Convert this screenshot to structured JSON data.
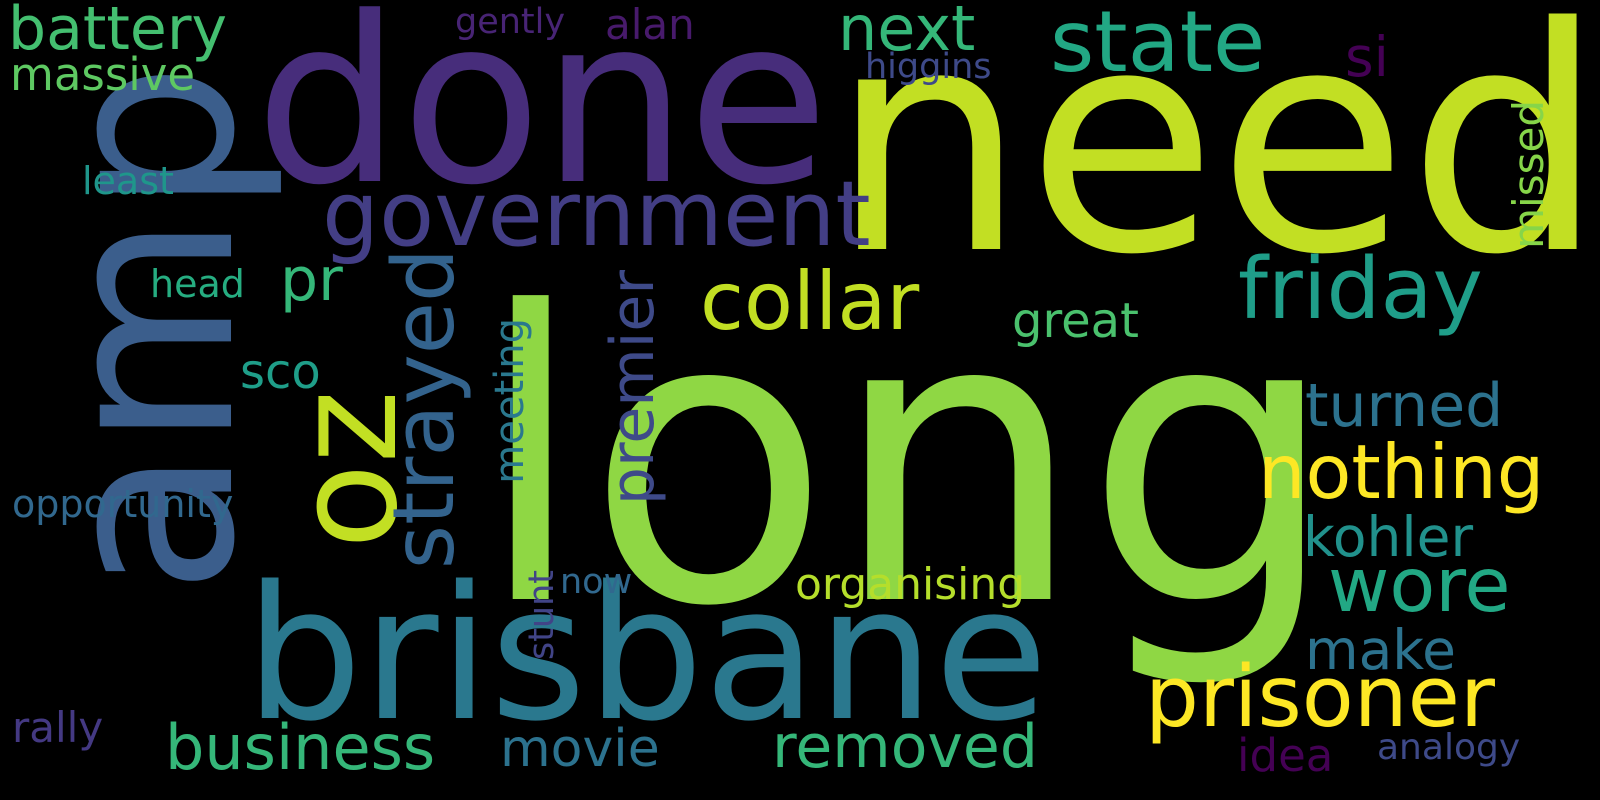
{
  "words": [
    {
      "key": "long",
      "text": "long",
      "color": "#8fd744"
    },
    {
      "key": "need",
      "text": "need",
      "color": "#c2df23"
    },
    {
      "key": "amp",
      "text": "amp",
      "color": "#3b5e8c"
    },
    {
      "key": "done",
      "text": "done",
      "color": "#472d7b"
    },
    {
      "key": "brisbane",
      "text": "brisbane",
      "color": "#2a788e"
    },
    {
      "key": "oz",
      "text": "oz",
      "color": "#c2df23"
    },
    {
      "key": "government",
      "text": "government",
      "color": "#433e85"
    },
    {
      "key": "state",
      "text": "state",
      "color": "#22a884"
    },
    {
      "key": "strayed",
      "text": "strayed",
      "color": "#33638d"
    },
    {
      "key": "collar",
      "text": "collar",
      "color": "#c2df23"
    },
    {
      "key": "friday",
      "text": "friday",
      "color": "#1f9e89"
    },
    {
      "key": "prisoner",
      "text": "prisoner",
      "color": "#fde725"
    },
    {
      "key": "nothing",
      "text": "nothing",
      "color": "#fde725"
    },
    {
      "key": "wore",
      "text": "wore",
      "color": "#22a884"
    },
    {
      "key": "battery",
      "text": "battery",
      "color": "#44bf70"
    },
    {
      "key": "next",
      "text": "next",
      "color": "#35b779"
    },
    {
      "key": "business",
      "text": "business",
      "color": "#35b779"
    },
    {
      "key": "removed",
      "text": "removed",
      "color": "#35b779"
    },
    {
      "key": "movie",
      "text": "movie",
      "color": "#2c728e"
    },
    {
      "key": "premier",
      "text": "premier",
      "color": "#3e4a89"
    },
    {
      "key": "turned",
      "text": "turned",
      "color": "#2c728e"
    },
    {
      "key": "kohler",
      "text": "kohler",
      "color": "#21918c"
    },
    {
      "key": "make",
      "text": "make",
      "color": "#2c728e"
    },
    {
      "key": "organising",
      "text": "organising",
      "color": "#b5de2b"
    },
    {
      "key": "massive",
      "text": "massive",
      "color": "#5ec962"
    },
    {
      "key": "si",
      "text": "si",
      "color": "#440154"
    },
    {
      "key": "pr",
      "text": "pr",
      "color": "#35b779"
    },
    {
      "key": "great",
      "text": "great",
      "color": "#4ac16d"
    },
    {
      "key": "meeting",
      "text": "meeting",
      "color": "#2a788e"
    },
    {
      "key": "missed",
      "text": "missed",
      "color": "#86d549"
    },
    {
      "key": "sco",
      "text": "sco",
      "color": "#1f9e89"
    },
    {
      "key": "opportunity",
      "text": "opportunity",
      "color": "#31688e"
    },
    {
      "key": "rally",
      "text": "rally",
      "color": "#443983"
    },
    {
      "key": "least",
      "text": "least",
      "color": "#1f968b"
    },
    {
      "key": "head",
      "text": "head",
      "color": "#26ad81"
    },
    {
      "key": "higgins",
      "text": "higgins",
      "color": "#3e4a89"
    },
    {
      "key": "gently",
      "text": "gently",
      "color": "#482475"
    },
    {
      "key": "alan",
      "text": "alan",
      "color": "#481a6c"
    },
    {
      "key": "now",
      "text": "now",
      "color": "#31688e"
    },
    {
      "key": "stunt",
      "text": "stunt",
      "color": "#414487"
    },
    {
      "key": "idea",
      "text": "idea",
      "color": "#440154"
    },
    {
      "key": "analogy",
      "text": "analogy",
      "color": "#3e4a89"
    }
  ]
}
